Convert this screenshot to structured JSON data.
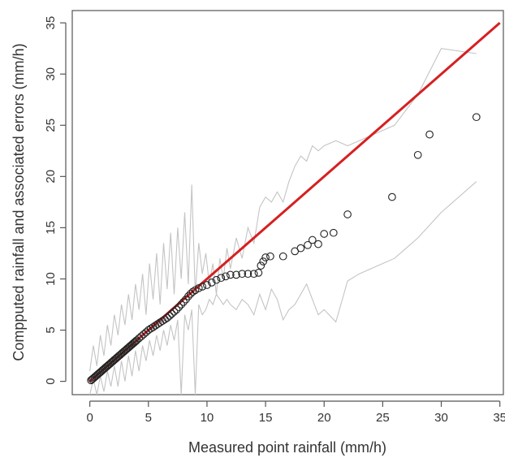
{
  "chart_data": {
    "type": "scatter",
    "title": "",
    "xlabel": "Measured point rainfall (mm/h)",
    "ylabel": "Compputed rainfall and associated errors (mm/h)",
    "xlim": [
      -1.5,
      35.3
    ],
    "ylim": [
      -1.3,
      36.2
    ],
    "x_ticks": [
      0,
      5,
      10,
      15,
      20,
      25,
      30,
      35
    ],
    "y_ticks": [
      0,
      5,
      10,
      15,
      20,
      25,
      30,
      35
    ],
    "x_tick_labels": [
      "0",
      "5",
      "10",
      "15",
      "20",
      "25",
      "30",
      "35"
    ],
    "y_tick_labels": [
      "0",
      "5",
      "10",
      "15",
      "20",
      "25",
      "30",
      "35"
    ],
    "grid": false,
    "legend": "none",
    "colors": {
      "points": "#222222",
      "identity_line": "#d62020",
      "error_bands": "#c4c4c4"
    },
    "series": [
      {
        "kind": "points",
        "x": [
          0.1,
          0.2,
          0.3,
          0.4,
          0.5,
          0.6,
          0.7,
          0.8,
          0.9,
          1.0,
          1.1,
          1.2,
          1.3,
          1.4,
          1.5,
          1.6,
          1.7,
          1.8,
          1.9,
          2.0,
          2.1,
          2.2,
          2.3,
          2.4,
          2.5,
          2.6,
          2.7,
          2.8,
          2.9,
          3.0,
          3.1,
          3.2,
          3.3,
          3.4,
          3.5,
          3.6,
          3.7,
          3.8,
          3.9,
          4.0,
          4.2,
          4.4,
          4.6,
          4.8,
          5.0,
          5.2,
          5.4,
          5.6,
          5.8,
          6.0,
          6.2,
          6.4,
          6.6,
          6.8,
          7.0,
          7.2,
          7.4,
          7.6,
          7.8,
          8.0,
          8.2,
          8.4,
          8.6,
          8.8,
          9.0,
          9.3,
          9.6,
          10.0,
          10.4,
          10.8,
          11.2,
          11.6,
          12.0,
          12.5,
          13.0,
          13.5,
          14.0,
          14.4,
          14.6,
          14.8,
          15.0,
          15.4,
          16.5,
          17.5,
          18.0,
          18.6,
          19.0,
          19.5,
          20.0,
          20.8,
          22.0,
          25.8,
          28.0,
          29.0,
          33.0
        ],
        "y": [
          0.1,
          0.2,
          0.3,
          0.4,
          0.5,
          0.6,
          0.7,
          0.8,
          0.9,
          1.0,
          1.1,
          1.2,
          1.3,
          1.4,
          1.5,
          1.6,
          1.7,
          1.8,
          1.9,
          2.0,
          2.1,
          2.2,
          2.3,
          2.4,
          2.5,
          2.6,
          2.7,
          2.8,
          2.9,
          3.0,
          3.1,
          3.2,
          3.3,
          3.4,
          3.5,
          3.6,
          3.7,
          3.8,
          3.9,
          4.0,
          4.2,
          4.4,
          4.6,
          4.8,
          5.0,
          5.15,
          5.3,
          5.45,
          5.6,
          5.75,
          5.9,
          6.05,
          6.2,
          6.4,
          6.6,
          6.8,
          7.0,
          7.25,
          7.5,
          7.75,
          8.0,
          8.3,
          8.55,
          8.75,
          8.9,
          9.1,
          9.25,
          9.4,
          9.65,
          9.9,
          10.1,
          10.25,
          10.4,
          10.4,
          10.5,
          10.5,
          10.5,
          10.6,
          11.3,
          11.7,
          12.1,
          12.2,
          12.2,
          12.7,
          13.0,
          13.3,
          13.8,
          13.4,
          14.4,
          14.5,
          16.3,
          18.0,
          22.1,
          24.1,
          25.8
        ]
      },
      {
        "kind": "identity_line",
        "x": [
          0,
          35
        ],
        "y": [
          0,
          35
        ]
      },
      {
        "kind": "upper_error",
        "x": [
          0.0,
          0.3,
          0.6,
          0.9,
          1.2,
          1.5,
          1.8,
          2.1,
          2.4,
          2.7,
          3.0,
          3.3,
          3.6,
          3.9,
          4.2,
          4.5,
          4.8,
          5.1,
          5.4,
          5.7,
          6.0,
          6.3,
          6.6,
          6.9,
          7.2,
          7.5,
          7.8,
          8.1,
          8.4,
          8.7,
          9.0,
          9.3,
          9.6,
          9.9,
          10.2,
          10.5,
          10.8,
          11.1,
          11.4,
          11.7,
          12.0,
          12.5,
          13.0,
          13.5,
          14.0,
          14.5,
          15.0,
          15.5,
          16.0,
          16.5,
          17.0,
          17.5,
          18.0,
          18.5,
          19.0,
          19.5,
          20.0,
          21.0,
          22.0,
          23.0,
          24.0,
          25.0,
          26.0,
          28.0,
          30.0,
          33.0
        ],
        "y": [
          1.0,
          3.5,
          1.5,
          4.5,
          2.5,
          5.5,
          3.5,
          6.5,
          4.5,
          7.5,
          5.5,
          8.5,
          6.0,
          9.5,
          7.0,
          10.5,
          6.5,
          11.5,
          8.0,
          12.5,
          7.5,
          13.5,
          9.0,
          14.5,
          8.5,
          15.0,
          10.0,
          16.5,
          9.5,
          19.2,
          8.5,
          13.5,
          10.5,
          12.5,
          9.5,
          11.5,
          8.5,
          12.0,
          10.0,
          13.0,
          11.0,
          14.0,
          12.0,
          15.0,
          13.5,
          17.0,
          18.0,
          17.5,
          18.5,
          17.5,
          19.5,
          21.0,
          22.0,
          21.5,
          23.0,
          22.5,
          23.0,
          23.5,
          23.0,
          23.5,
          24.0,
          24.5,
          25.0,
          28.0,
          32.5,
          32.0
        ]
      },
      {
        "kind": "lower_error",
        "x": [
          0.0,
          0.3,
          0.6,
          0.9,
          1.2,
          1.5,
          1.8,
          2.1,
          2.4,
          2.7,
          3.0,
          3.3,
          3.6,
          3.9,
          4.2,
          4.5,
          4.8,
          5.1,
          5.4,
          5.7,
          6.0,
          6.3,
          6.6,
          6.9,
          7.2,
          7.5,
          7.8,
          8.1,
          8.4,
          8.7,
          9.0,
          9.3,
          9.6,
          9.9,
          10.2,
          10.5,
          10.8,
          11.1,
          11.4,
          11.7,
          12.0,
          12.5,
          13.0,
          13.5,
          14.0,
          14.5,
          15.0,
          15.5,
          16.0,
          16.5,
          17.0,
          17.5,
          18.0,
          18.5,
          19.0,
          19.5,
          20.0,
          21.0,
          22.0,
          23.0,
          24.0,
          25.0,
          26.0,
          28.0,
          30.0,
          33.0
        ],
        "y": [
          -1.3,
          0.2,
          -1.3,
          0.5,
          -1.0,
          1.0,
          -0.5,
          1.5,
          -0.5,
          2.0,
          0.0,
          2.5,
          0.5,
          3.0,
          1.0,
          3.5,
          2.0,
          4.0,
          2.5,
          4.5,
          3.0,
          5.0,
          3.5,
          5.5,
          4.0,
          6.0,
          -1.3,
          6.5,
          5.0,
          7.0,
          -1.3,
          7.5,
          6.5,
          7.0,
          8.0,
          7.5,
          8.5,
          8.0,
          7.5,
          8.0,
          7.5,
          7.0,
          8.0,
          7.5,
          6.5,
          8.5,
          7.0,
          9.0,
          8.0,
          6.0,
          7.0,
          7.5,
          8.5,
          9.5,
          8.0,
          6.5,
          7.0,
          5.8,
          9.8,
          10.5,
          11.0,
          11.5,
          12.0,
          14.0,
          16.5,
          19.5
        ]
      }
    ]
  }
}
